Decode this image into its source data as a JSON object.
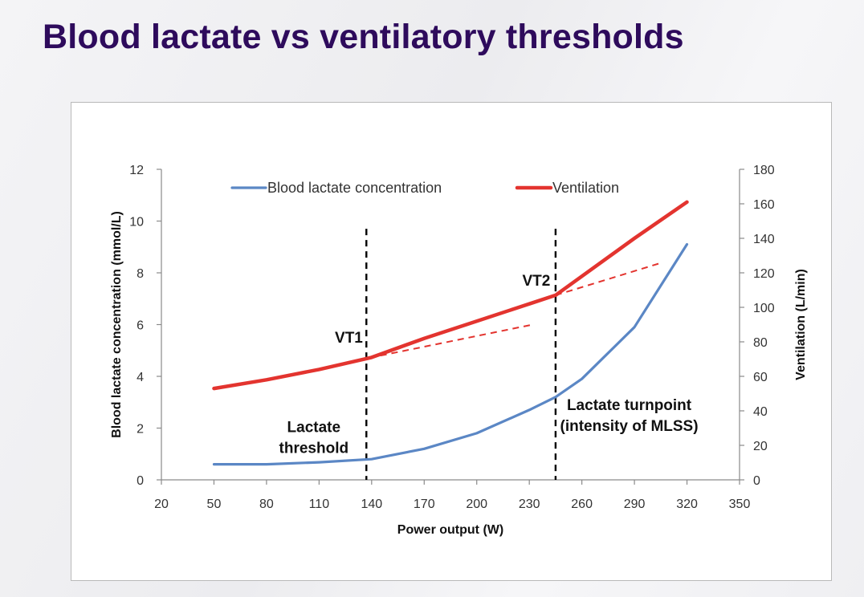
{
  "slide": {
    "title": "Blood lactate vs ventilatory thresholds"
  },
  "chart_data": {
    "type": "line",
    "xlabel": "Power output (W)",
    "ylabel_left": "Blood lactate concentration (mmol/L)",
    "ylabel_right": "Ventilation (L/min)",
    "xlim": [
      20,
      350
    ],
    "xticks": [
      "20",
      "50",
      "80",
      "110",
      "140",
      "170",
      "200",
      "230",
      "260",
      "290",
      "320",
      "350"
    ],
    "ylim_left": [
      0,
      12
    ],
    "yticks_left": [
      "0",
      "2",
      "4",
      "6",
      "8",
      "10",
      "12"
    ],
    "ylim_right": [
      0,
      180
    ],
    "yticks_right": [
      "0",
      "20",
      "40",
      "60",
      "80",
      "100",
      "120",
      "140",
      "160",
      "180"
    ],
    "grid": false,
    "legend_position": "top",
    "series": [
      {
        "name": "Blood lactate concentration",
        "axis": "left",
        "color": "#5b87c5",
        "x": [
          50,
          80,
          110,
          140,
          170,
          200,
          230,
          245,
          260,
          290,
          320
        ],
        "y": [
          0.6,
          0.6,
          0.68,
          0.8,
          1.2,
          1.8,
          2.7,
          3.2,
          3.9,
          5.9,
          9.1
        ]
      },
      {
        "name": "Ventilation",
        "axis": "right",
        "color": "#e3342f",
        "x": [
          50,
          80,
          110,
          140,
          170,
          200,
          230,
          245,
          260,
          290,
          320
        ],
        "y": [
          53,
          58,
          64,
          71,
          82,
          92,
          102,
          107,
          118,
          140,
          161
        ]
      }
    ],
    "trend_lines": [
      {
        "axis": "right",
        "color": "#e3342f",
        "x": [
          145,
          232
        ],
        "y": [
          72,
          90
        ]
      },
      {
        "axis": "right",
        "color": "#e3342f",
        "x": [
          245,
          306
        ],
        "y": [
          107,
          126
        ]
      }
    ],
    "threshold_lines": [
      {
        "x": 137,
        "ymax_left": 9.7
      },
      {
        "x": 245,
        "ymax_left": 9.7
      }
    ],
    "annotations": [
      {
        "text": "VT1",
        "x": 127,
        "y_left": 5.3,
        "anchor": "middle"
      },
      {
        "text": "VT2",
        "x": 234,
        "y_left": 7.5,
        "anchor": "middle"
      },
      {
        "lines": [
          "Lactate",
          "threshold"
        ],
        "x": 107,
        "y_left": 1.85,
        "anchor": "middle"
      },
      {
        "lines": [
          "Lactate turnpoint",
          "(intensity of MLSS)"
        ],
        "x": 287,
        "y_left": 2.7,
        "anchor": "middle"
      }
    ]
  }
}
